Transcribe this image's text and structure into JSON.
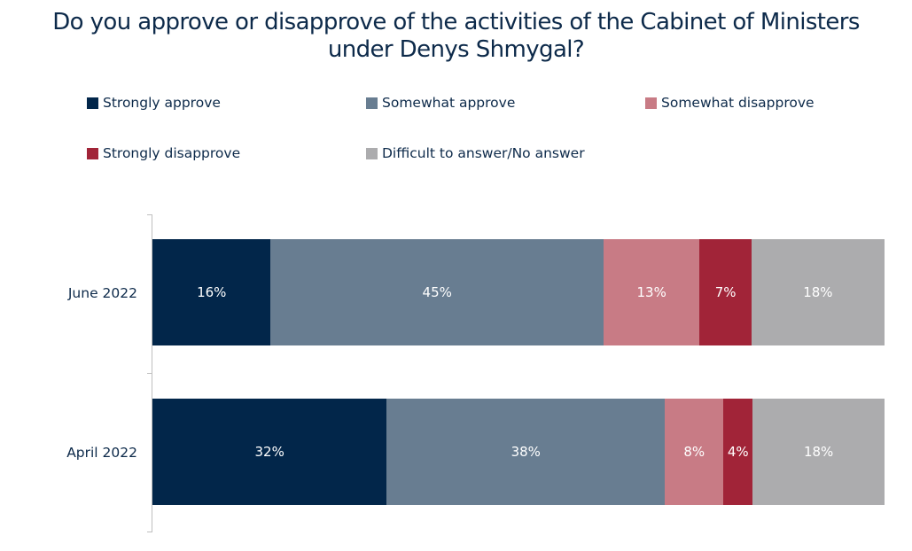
{
  "chart_data": {
    "type": "bar",
    "orientation": "horizontal",
    "stacked": true,
    "title": "Do you approve or disapprove of the activities of the Cabinet of Ministers under Denys Shmygal?",
    "title_lines": [
      "Do you approve or disapprove of the activities of the Cabinet of Ministers",
      "under Denys Shmygal?"
    ],
    "xlabel": "",
    "ylabel": "",
    "xlim": [
      0,
      100
    ],
    "grid": false,
    "legend_position": "top",
    "categories": [
      "June 2022",
      "April 2022"
    ],
    "series": [
      {
        "name": "Strongly approve",
        "color": "#02264a",
        "values": [
          16,
          32
        ],
        "labels": [
          "16%",
          "32%"
        ]
      },
      {
        "name": "Somewhat approve",
        "color": "#687d91",
        "values": [
          45,
          38
        ],
        "labels": [
          "45%",
          "38%"
        ]
      },
      {
        "name": "Somewhat disapprove",
        "color": "#c87b85",
        "values": [
          13,
          8
        ],
        "labels": [
          "13%",
          "8%"
        ]
      },
      {
        "name": "Strongly disapprove",
        "color": "#a12438",
        "values": [
          7,
          4
        ],
        "labels": [
          "7%",
          "4%"
        ]
      },
      {
        "name": "Difficult to answer/No answer",
        "color": "#acacae",
        "values": [
          18,
          18
        ],
        "labels": [
          "18%",
          "18%"
        ]
      }
    ]
  }
}
